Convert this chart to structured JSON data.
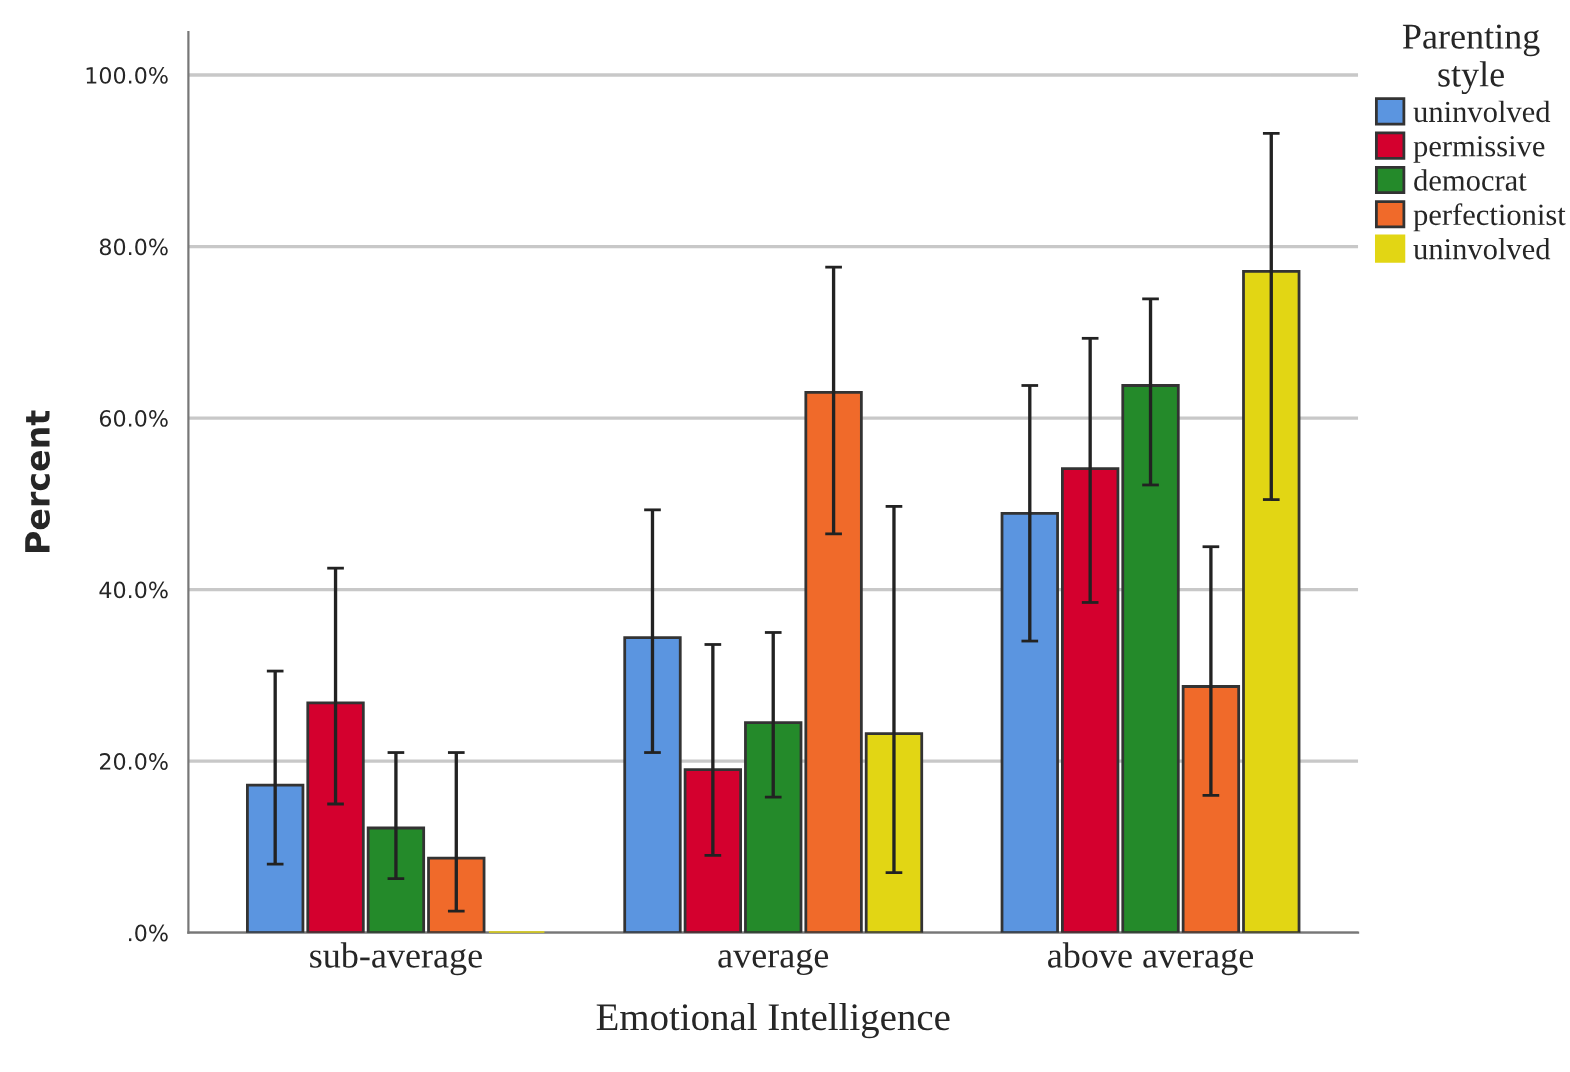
{
  "chart_data": {
    "type": "bar",
    "xlabel": "Emotional Intelligence",
    "ylabel": "Percent",
    "legend_title": "Parenting\nstyle",
    "categories": [
      "sub-average",
      "average",
      "above average"
    ],
    "series": [
      {
        "name": "uninvolved",
        "color": "#5b95e0",
        "values": [
          17.2,
          34.4,
          48.9
        ],
        "errors": [
          [
            8,
            30.5
          ],
          [
            21,
            49.3
          ],
          [
            34,
            63.8
          ]
        ]
      },
      {
        "name": "permissive",
        "color": "#d4002e",
        "values": [
          26.8,
          19,
          54.1
        ],
        "errors": [
          [
            15,
            42.5
          ],
          [
            9,
            33.6
          ],
          [
            38.5,
            69.3
          ]
        ]
      },
      {
        "name": "democrat",
        "color": "#248a2a",
        "values": [
          12.2,
          24.5,
          63.8
        ],
        "errors": [
          [
            6.3,
            21
          ],
          [
            15.8,
            35
          ],
          [
            52.2,
            73.9
          ]
        ]
      },
      {
        "name": "perfectionist",
        "color": "#f06a2a",
        "values": [
          8.7,
          63,
          28.7
        ],
        "errors": [
          [
            2.5,
            21
          ],
          [
            46.5,
            77.6
          ],
          [
            16,
            45
          ]
        ]
      },
      {
        "name": "uninvolved",
        "color": "#e2d614",
        "values": [
          0,
          23.2,
          77.1
        ],
        "errors": [
          null,
          [
            7,
            49.7
          ],
          [
            50.5,
            93.2
          ]
        ]
      }
    ],
    "ylim": [
      0,
      105
    ],
    "yticks": [
      {
        "value": 0,
        "label": ".0%"
      },
      {
        "value": 20,
        "label": "20.0%"
      },
      {
        "value": 40,
        "label": "40.0%"
      },
      {
        "value": 60,
        "label": "60.0%"
      },
      {
        "value": 80,
        "label": "80.0%"
      },
      {
        "value": 100,
        "label": "100.0%"
      }
    ],
    "grid": "y",
    "legend": "top right"
  }
}
